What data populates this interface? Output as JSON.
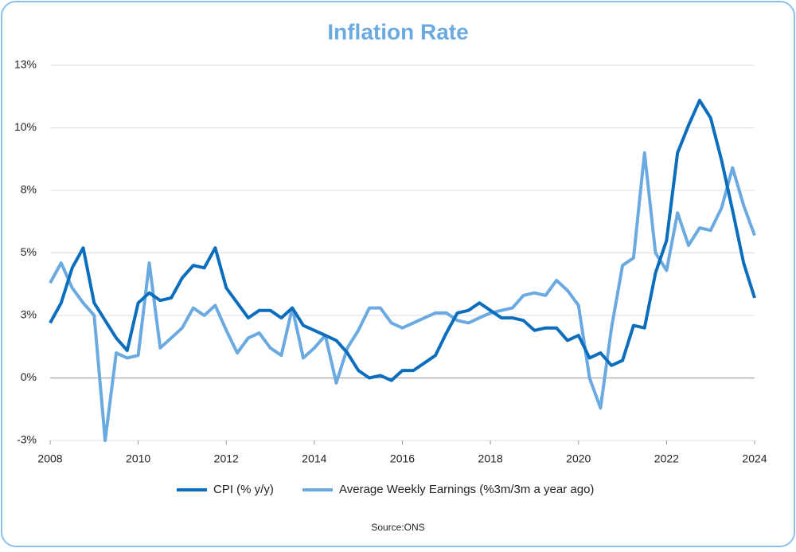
{
  "chart_data": {
    "type": "line",
    "title": "Inflation Rate",
    "source": "Source:ONS",
    "x": [
      2008,
      2008.25,
      2008.5,
      2008.75,
      2009,
      2009.25,
      2009.5,
      2009.75,
      2010,
      2010.25,
      2010.5,
      2010.75,
      2011,
      2011.25,
      2011.5,
      2011.75,
      2012,
      2012.25,
      2012.5,
      2012.75,
      2013,
      2013.25,
      2013.5,
      2013.75,
      2014,
      2014.25,
      2014.5,
      2014.75,
      2015,
      2015.25,
      2015.5,
      2015.75,
      2016,
      2016.25,
      2016.5,
      2016.75,
      2017,
      2017.25,
      2017.5,
      2017.75,
      2018,
      2018.25,
      2018.5,
      2018.75,
      2019,
      2019.25,
      2019.5,
      2019.75,
      2020,
      2020.25,
      2020.5,
      2020.75,
      2021,
      2021.25,
      2021.5,
      2021.75,
      2022,
      2022.25,
      2022.5,
      2022.75,
      2023,
      2023.25,
      2023.5,
      2023.75,
      2024
    ],
    "series": [
      {
        "name": "CPI (% y/y)",
        "color": "#0a6ebd",
        "values": [
          2.2,
          3.0,
          4.4,
          5.2,
          3.0,
          2.3,
          1.6,
          1.1,
          3.0,
          3.4,
          3.1,
          3.2,
          4.0,
          4.5,
          4.4,
          5.2,
          3.6,
          3.0,
          2.4,
          2.7,
          2.7,
          2.4,
          2.8,
          2.1,
          1.9,
          1.7,
          1.5,
          1.0,
          0.3,
          0.0,
          0.1,
          -0.1,
          0.3,
          0.3,
          0.6,
          0.9,
          1.8,
          2.6,
          2.7,
          3.0,
          2.7,
          2.4,
          2.4,
          2.3,
          1.9,
          2.0,
          2.0,
          1.5,
          1.7,
          0.8,
          1.0,
          0.5,
          0.7,
          2.1,
          2.0,
          4.2,
          5.5,
          9.0,
          10.1,
          11.1,
          10.4,
          8.7,
          6.7,
          4.6,
          3.2
        ]
      },
      {
        "name": "Average Weekly Earnings (%3m/3m a year ago)",
        "color": "#6aaae0",
        "values": [
          3.8,
          4.6,
          3.6,
          3.0,
          2.5,
          -2.5,
          1.0,
          0.8,
          0.9,
          4.6,
          1.2,
          1.6,
          2.0,
          2.8,
          2.5,
          2.9,
          1.9,
          1.0,
          1.6,
          1.8,
          1.2,
          0.9,
          2.8,
          0.8,
          1.2,
          1.7,
          -0.2,
          1.2,
          1.9,
          2.8,
          2.8,
          2.2,
          2.0,
          2.2,
          2.4,
          2.6,
          2.6,
          2.3,
          2.2,
          2.4,
          2.6,
          2.7,
          2.8,
          3.3,
          3.4,
          3.3,
          3.9,
          3.5,
          2.9,
          0.0,
          -1.2,
          2.0,
          4.5,
          4.8,
          9.0,
          5.0,
          4.3,
          6.6,
          5.3,
          6.0,
          5.9,
          6.8,
          8.4,
          6.9,
          5.7
        ]
      }
    ],
    "xlim": [
      2008,
      2024
    ],
    "xticks": [
      2008,
      2010,
      2012,
      2014,
      2016,
      2018,
      2020,
      2022,
      2024
    ],
    "ylim": [
      -2.5,
      12.5
    ],
    "yticks": [
      {
        "value": -2.5,
        "label": "-3%"
      },
      {
        "value": 0,
        "label": "0%"
      },
      {
        "value": 2.5,
        "label": "3%"
      },
      {
        "value": 5,
        "label": "5%"
      },
      {
        "value": 7.5,
        "label": "8%"
      },
      {
        "value": 10,
        "label": "10%"
      },
      {
        "value": 12.5,
        "label": "13%"
      }
    ],
    "grid": true
  }
}
